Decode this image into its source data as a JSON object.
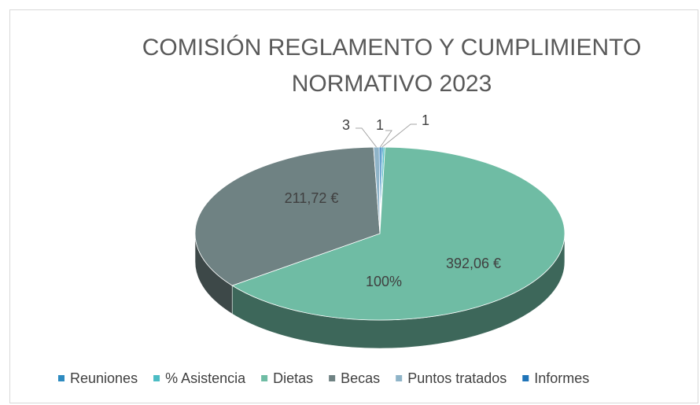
{
  "chart_data": {
    "type": "pie3d",
    "title": "COMISIÓN REGLAMENTO Y CUMPLIMIENTO NORMATIVO 2023",
    "categories": [
      "Reuniones",
      "% Asistencia",
      "Dietas",
      "Becas",
      "Puntos tratados",
      "Informes"
    ],
    "values": [
      1,
      1,
      392.06,
      211.72,
      3,
      1
    ],
    "value_labels": [
      "1",
      "100%",
      "392,06 €",
      "211,72 €",
      "3",
      "1"
    ],
    "colors": [
      "#2e8bc0",
      "#4cbcc4",
      "#6fbca4",
      "#6f8283",
      "#8fb4c8",
      "#1f74b8"
    ],
    "legend": "bottom"
  }
}
